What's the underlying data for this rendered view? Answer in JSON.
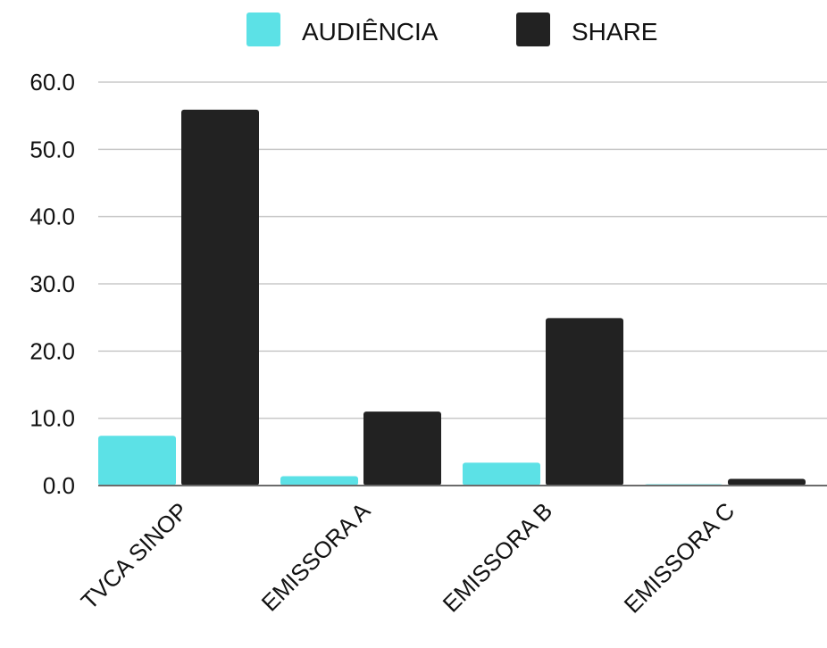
{
  "chart_data": {
    "type": "bar",
    "categories": [
      "TVCA SINOP",
      "EMISSORA A",
      "EMISSORA B",
      "EMISSORA C"
    ],
    "series": [
      {
        "name": "AUDIÊNCIA",
        "values": [
          7.4,
          1.4,
          3.4,
          0.2
        ],
        "color": "#5ce1e6"
      },
      {
        "name": "SHARE",
        "values": [
          55.9,
          11.0,
          24.9,
          1.0
        ],
        "color": "#222222"
      }
    ],
    "y_ticks": [
      "0.0",
      "10.0",
      "20.0",
      "30.0",
      "40.0",
      "50.0",
      "60.0"
    ],
    "ylim": [
      0,
      60
    ],
    "grid": true,
    "legend_position": "top-center",
    "title": "",
    "xlabel": "",
    "ylabel": ""
  }
}
